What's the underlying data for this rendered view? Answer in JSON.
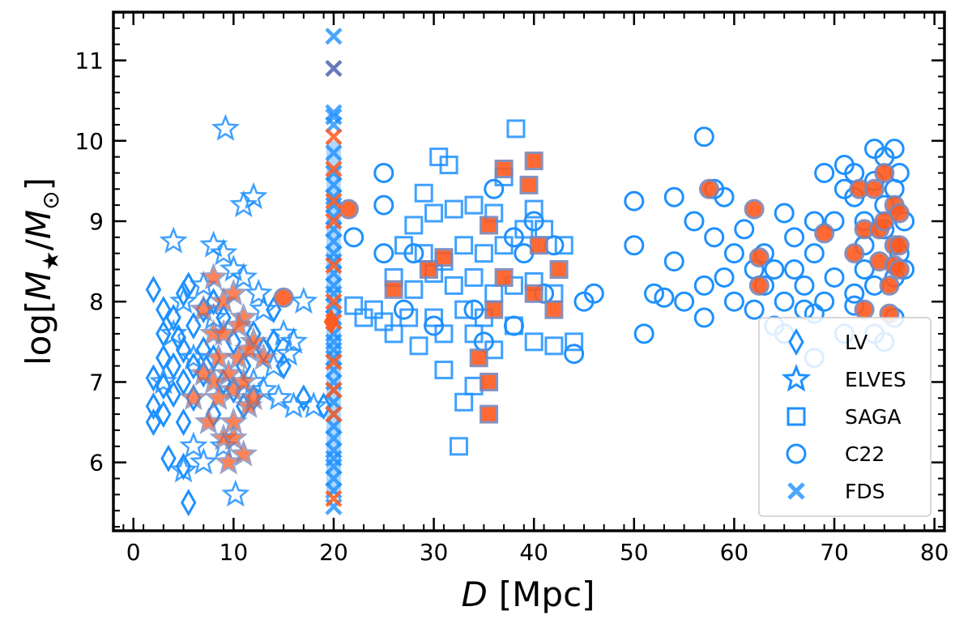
{
  "chart_data": {
    "type": "scatter",
    "xlabel_var": "D",
    "xlabel_unit": "[Mpc]",
    "ylabel_prefix": "log[",
    "ylabel_m1": "M",
    "ylabel_sub1": "★",
    "ylabel_slash": "/",
    "ylabel_m2": "M",
    "ylabel_sub2": "⊙",
    "ylabel_suffix": "]",
    "xlim": [
      -2,
      81
    ],
    "ylim": [
      5.15,
      11.6
    ],
    "xticks": [
      0,
      10,
      20,
      30,
      40,
      50,
      60,
      70,
      80
    ],
    "yticks": [
      6,
      7,
      8,
      9,
      10,
      11
    ],
    "legend_position": "bottom-right",
    "colors": {
      "blue": "#1e90ff",
      "orange": "#ff5a1f",
      "edge_orange": "#7a86b8"
    },
    "series": [
      {
        "name": "LV",
        "marker": "diamond",
        "points": [
          [
            2,
            8.15
          ],
          [
            2,
            7.05
          ],
          [
            2,
            6.7
          ],
          [
            2,
            6.5
          ],
          [
            3,
            7.9
          ],
          [
            3,
            7.6
          ],
          [
            3,
            7.3
          ],
          [
            3,
            6.95
          ],
          [
            3,
            6.6
          ],
          [
            3.5,
            6.05
          ],
          [
            4,
            7.8
          ],
          [
            4,
            7.2
          ],
          [
            4,
            6.85
          ],
          [
            4.5,
            7.55
          ],
          [
            5,
            8.1
          ],
          [
            5,
            7.4
          ],
          [
            5,
            7.0
          ],
          [
            5,
            6.5
          ],
          [
            5,
            5.95
          ],
          [
            5.5,
            8.2
          ],
          [
            5.5,
            5.5
          ],
          [
            6,
            7.7
          ],
          [
            6,
            7.2
          ],
          [
            6,
            6.8
          ],
          [
            7,
            7.9
          ],
          [
            7,
            7.4
          ],
          [
            7,
            7.1
          ],
          [
            8,
            8.0
          ],
          [
            8,
            7.3
          ],
          [
            8,
            6.6
          ],
          [
            9,
            7.8
          ],
          [
            9,
            7.0
          ],
          [
            10,
            7.5
          ],
          [
            10,
            6.9
          ],
          [
            11,
            7.2
          ],
          [
            11,
            6.7
          ],
          [
            12,
            7.6
          ],
          [
            12,
            6.8
          ],
          [
            13,
            7.4
          ],
          [
            14,
            7.9
          ],
          [
            14,
            7.5
          ],
          [
            15,
            7.2
          ],
          [
            17,
            6.8
          ],
          [
            19,
            6.7
          ]
        ]
      },
      {
        "name": "ELVES",
        "marker": "star",
        "points": [
          [
            9.2,
            10.15
          ],
          [
            4,
            8.75
          ],
          [
            11,
            9.2
          ],
          [
            12,
            9.3
          ],
          [
            8,
            8.7
          ],
          [
            9,
            8.6
          ],
          [
            10,
            8.4
          ],
          [
            12.5,
            8.1
          ],
          [
            13,
            7.9
          ],
          [
            15,
            7.6
          ],
          [
            16,
            7.5
          ],
          [
            17,
            8.0
          ],
          [
            14,
            7.2
          ],
          [
            15.5,
            7.35
          ],
          [
            13,
            6.9
          ],
          [
            14.5,
            6.8
          ],
          [
            16,
            6.7
          ],
          [
            18,
            6.7
          ],
          [
            6,
            6.2
          ],
          [
            7,
            6.0
          ],
          [
            5,
            5.9
          ],
          [
            9,
            6.2
          ],
          [
            10.2,
            5.6
          ],
          [
            3,
            7.0
          ],
          [
            4,
            7.6
          ],
          [
            5,
            8.0
          ],
          [
            6,
            7.3
          ],
          [
            7,
            8.2
          ],
          [
            8,
            7.8
          ],
          [
            11,
            8.3
          ],
          [
            12,
            7.0
          ]
        ],
        "filled_points": [
          [
            7,
            7.9
          ],
          [
            8,
            7.6
          ],
          [
            8.5,
            7.3
          ],
          [
            9,
            7.6
          ],
          [
            9.5,
            7.1
          ],
          [
            10,
            6.9
          ],
          [
            10,
            6.5
          ],
          [
            10.5,
            7.3
          ],
          [
            11,
            7.0
          ],
          [
            11.5,
            6.7
          ],
          [
            12,
            6.8
          ],
          [
            9,
            6.3
          ],
          [
            10,
            6.3
          ],
          [
            11,
            6.1
          ],
          [
            8,
            7.0
          ],
          [
            7.5,
            6.5
          ],
          [
            12,
            7.5
          ],
          [
            9,
            8.0
          ],
          [
            11,
            7.8
          ],
          [
            10,
            8.1
          ],
          [
            8,
            8.3
          ],
          [
            13,
            7.3
          ],
          [
            6,
            6.8
          ],
          [
            7,
            7.1
          ],
          [
            9.5,
            6.0
          ],
          [
            10.5,
            7.7
          ],
          [
            8.5,
            6.8
          ],
          [
            11.5,
            7.4
          ]
        ]
      },
      {
        "name": "SAGA",
        "marker": "square",
        "points": [
          [
            38.2,
            10.15
          ],
          [
            30.5,
            9.8
          ],
          [
            31.5,
            9.7
          ],
          [
            28,
            8.95
          ],
          [
            30,
            9.1
          ],
          [
            32,
            9.15
          ],
          [
            34,
            9.2
          ],
          [
            36,
            9.1
          ],
          [
            27,
            8.7
          ],
          [
            29,
            8.6
          ],
          [
            31,
            8.5
          ],
          [
            33,
            8.7
          ],
          [
            35,
            8.6
          ],
          [
            37,
            8.7
          ],
          [
            39,
            8.9
          ],
          [
            41,
            8.9
          ],
          [
            43,
            8.7
          ],
          [
            22,
            7.95
          ],
          [
            23,
            7.8
          ],
          [
            24,
            7.9
          ],
          [
            25,
            7.75
          ],
          [
            26,
            7.6
          ],
          [
            27.5,
            7.8
          ],
          [
            28.5,
            7.45
          ],
          [
            30,
            7.8
          ],
          [
            31,
            7.6
          ],
          [
            33,
            7.9
          ],
          [
            34,
            7.6
          ],
          [
            35,
            7.8
          ],
          [
            36,
            7.4
          ],
          [
            38,
            7.7
          ],
          [
            40,
            7.5
          ],
          [
            42,
            7.45
          ],
          [
            44,
            7.5
          ],
          [
            31,
            7.15
          ],
          [
            33,
            6.75
          ],
          [
            34,
            6.95
          ],
          [
            32.5,
            6.2
          ],
          [
            26,
            8.3
          ],
          [
            28,
            8.15
          ],
          [
            30,
            8.35
          ],
          [
            32,
            8.2
          ],
          [
            34,
            8.3
          ],
          [
            36,
            8.1
          ],
          [
            38,
            8.2
          ],
          [
            40,
            8.25
          ],
          [
            42,
            8.1
          ],
          [
            29,
            9.35
          ],
          [
            37,
            9.55
          ],
          [
            40,
            9.15
          ]
        ],
        "filled_points": [
          [
            37,
            9.65
          ],
          [
            40,
            9.75
          ],
          [
            39.5,
            9.45
          ],
          [
            35.5,
            8.95
          ],
          [
            40.5,
            8.7
          ],
          [
            31,
            8.55
          ],
          [
            29.5,
            8.4
          ],
          [
            37,
            8.3
          ],
          [
            42.5,
            8.4
          ],
          [
            26,
            8.15
          ],
          [
            40,
            8.1
          ],
          [
            42,
            7.9
          ],
          [
            36,
            7.9
          ],
          [
            34.5,
            7.3
          ],
          [
            35.5,
            7.0
          ],
          [
            35.5,
            6.6
          ]
        ]
      },
      {
        "name": "C22",
        "marker": "circle",
        "points": [
          [
            57,
            10.05
          ],
          [
            25,
            9.6
          ],
          [
            22,
            8.8
          ],
          [
            25,
            9.2
          ],
          [
            25,
            8.6
          ],
          [
            28,
            8.6
          ],
          [
            30,
            7.7
          ],
          [
            27,
            7.9
          ],
          [
            36,
            9.4
          ],
          [
            38,
            8.8
          ],
          [
            39,
            8.6
          ],
          [
            40,
            9.0
          ],
          [
            41,
            8.1
          ],
          [
            42,
            8.7
          ],
          [
            44,
            7.35
          ],
          [
            45,
            8.0
          ],
          [
            46,
            8.1
          ],
          [
            38,
            7.7
          ],
          [
            35,
            7.5
          ],
          [
            34,
            7.9
          ],
          [
            50,
            9.25
          ],
          [
            50,
            8.7
          ],
          [
            52,
            8.1
          ],
          [
            51,
            7.6
          ],
          [
            53,
            8.05
          ],
          [
            54,
            8.5
          ],
          [
            54,
            9.3
          ],
          [
            55,
            8.0
          ],
          [
            56,
            9.0
          ],
          [
            57,
            8.2
          ],
          [
            57,
            7.8
          ],
          [
            58,
            9.4
          ],
          [
            58,
            8.8
          ],
          [
            59,
            8.3
          ],
          [
            59,
            9.3
          ],
          [
            60,
            8.0
          ],
          [
            60,
            8.6
          ],
          [
            61,
            8.9
          ],
          [
            62,
            8.4
          ],
          [
            62,
            7.9
          ],
          [
            63,
            8.2
          ],
          [
            63,
            8.6
          ],
          [
            64,
            8.4
          ],
          [
            64,
            7.7
          ],
          [
            65,
            9.1
          ],
          [
            65,
            8.0
          ],
          [
            66,
            8.8
          ],
          [
            66,
            8.4
          ],
          [
            67,
            7.9
          ],
          [
            67,
            8.2
          ],
          [
            68,
            9.0
          ],
          [
            68,
            8.6
          ],
          [
            68,
            7.3
          ],
          [
            69,
            9.6
          ],
          [
            69,
            8.0
          ],
          [
            70,
            8.3
          ],
          [
            70,
            9.0
          ],
          [
            71,
            9.4
          ],
          [
            71,
            9.7
          ],
          [
            71,
            7.6
          ],
          [
            72,
            9.6
          ],
          [
            72,
            8.1
          ],
          [
            72,
            9.3
          ],
          [
            73,
            8.7
          ],
          [
            73,
            8.4
          ],
          [
            73,
            9.0
          ],
          [
            74,
            9.9
          ],
          [
            74,
            9.5
          ],
          [
            74,
            8.2
          ],
          [
            74,
            7.6
          ],
          [
            75,
            9.8
          ],
          [
            75,
            9.2
          ],
          [
            75,
            8.9
          ],
          [
            75,
            7.5
          ],
          [
            76,
            9.9
          ],
          [
            76,
            9.4
          ],
          [
            76,
            8.3
          ],
          [
            76,
            7.8
          ],
          [
            76.5,
            9.6
          ],
          [
            76.5,
            8.6
          ],
          [
            77,
            9.0
          ],
          [
            77,
            8.4
          ],
          [
            65,
            7.6
          ],
          [
            68,
            7.85
          ],
          [
            72,
            7.95
          ]
        ],
        "filled_points": [
          [
            21.5,
            9.15
          ],
          [
            15,
            8.05
          ],
          [
            57.5,
            9.4
          ],
          [
            62,
            9.15
          ],
          [
            62.5,
            8.55
          ],
          [
            62.5,
            8.2
          ],
          [
            69,
            8.85
          ],
          [
            72,
            8.6
          ],
          [
            72.5,
            9.4
          ],
          [
            73,
            8.9
          ],
          [
            73,
            7.9
          ],
          [
            74,
            9.4
          ],
          [
            74.5,
            8.9
          ],
          [
            74.5,
            8.5
          ],
          [
            75,
            9.6
          ],
          [
            75,
            9.0
          ],
          [
            75.5,
            8.2
          ],
          [
            75.5,
            7.85
          ],
          [
            76,
            9.2
          ],
          [
            76,
            8.7
          ],
          [
            76,
            8.45
          ],
          [
            76.5,
            9.1
          ],
          [
            76.5,
            8.7
          ],
          [
            76.5,
            8.4
          ]
        ]
      },
      {
        "name": "FDS",
        "marker": "x",
        "x": 20,
        "y_values": [
          11.3,
          10.35,
          10.3,
          10.2,
          9.85,
          9.6,
          9.45,
          9.3,
          9.2,
          9.05,
          8.9,
          8.75,
          8.6,
          8.5,
          8.35,
          8.2,
          8.1,
          7.95,
          7.8,
          7.6,
          7.5,
          7.4,
          7.3,
          7.15,
          7.0,
          6.9,
          6.75,
          6.6,
          6.45,
          6.3,
          6.15,
          6.05,
          5.95,
          5.8,
          5.65,
          5.45
        ],
        "dark_values": [
          10.9
        ],
        "orange_values": [
          10.05,
          9.65,
          9.25,
          9.0,
          8.45,
          8.0,
          7.75,
          7.25,
          6.9,
          6.6,
          5.55
        ]
      }
    ]
  }
}
